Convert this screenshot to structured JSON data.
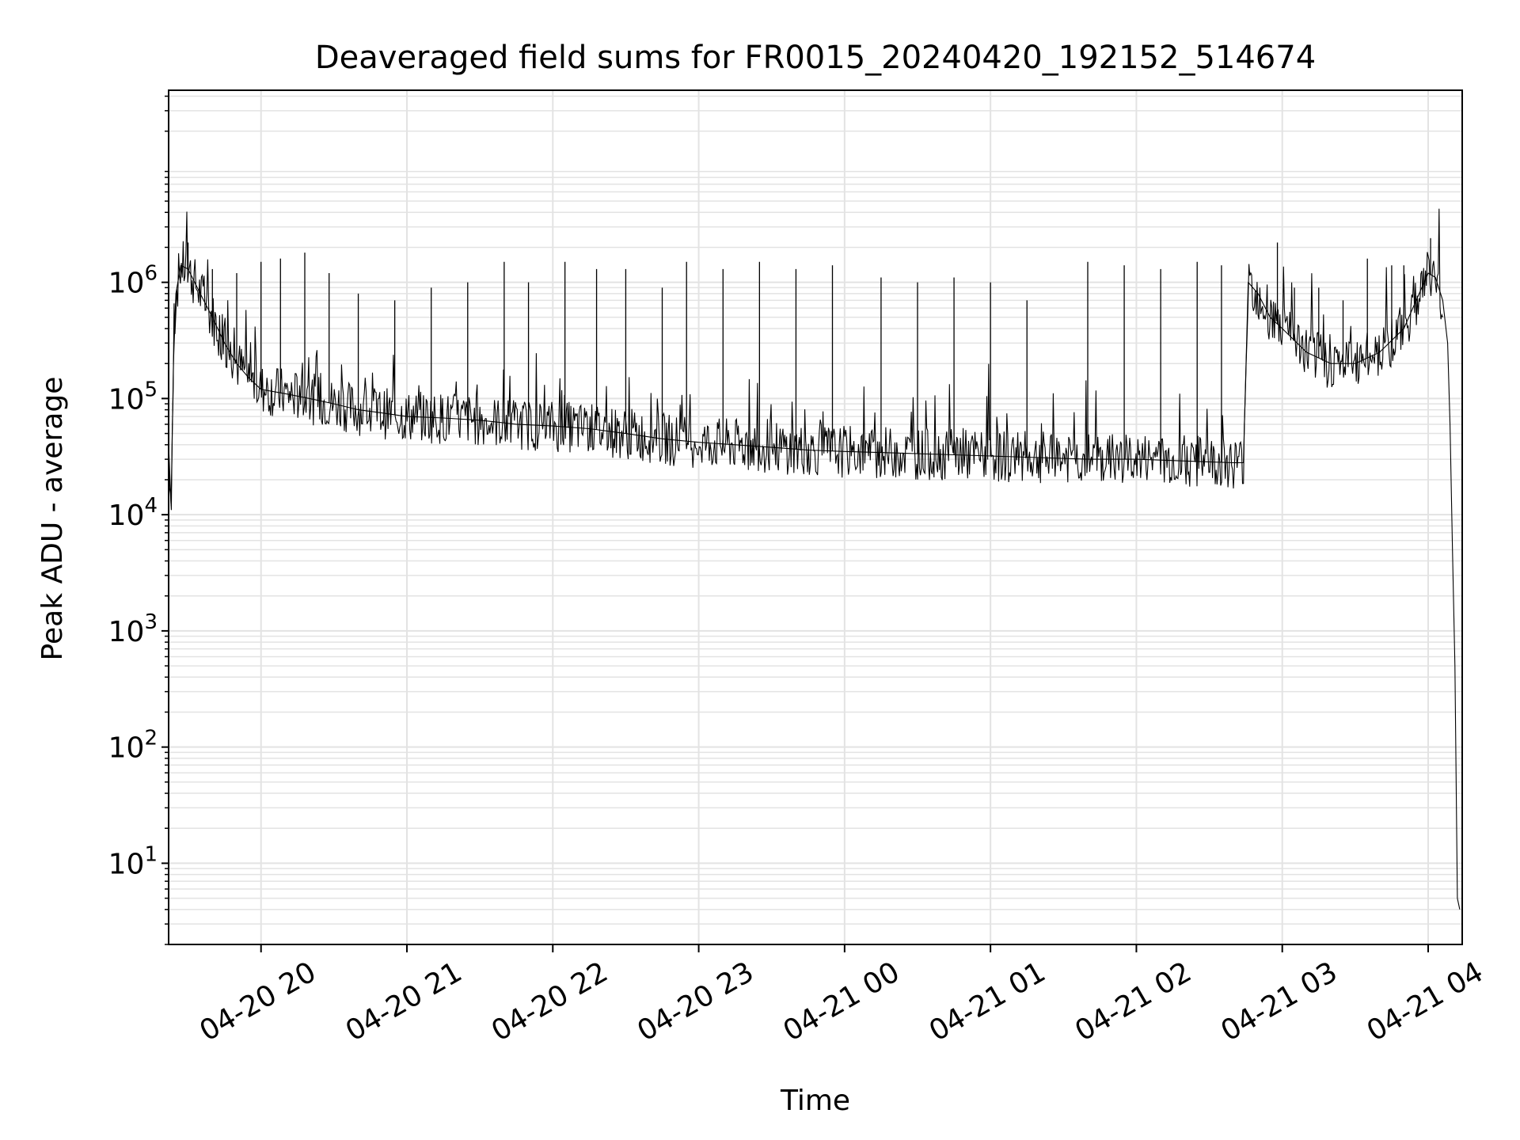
{
  "chart_data": {
    "type": "line",
    "title": "Deaveraged field sums for FR0015_20240420_192152_514674",
    "xlabel": "Time",
    "ylabel": "Peak ADU - average",
    "y_scale": "log",
    "ylim": [
      2,
      45000000
    ],
    "xlim": [
      "2024-04-20 19:22",
      "2024-04-21 04:14"
    ],
    "x_ticks": [
      {
        "value": "2024-04-20 20:00",
        "label": "04-20 20"
      },
      {
        "value": "2024-04-20 21:00",
        "label": "04-20 21"
      },
      {
        "value": "2024-04-20 22:00",
        "label": "04-20 22"
      },
      {
        "value": "2024-04-20 23:00",
        "label": "04-20 23"
      },
      {
        "value": "2024-04-21 00:00",
        "label": "04-21 00"
      },
      {
        "value": "2024-04-21 01:00",
        "label": "04-21 01"
      },
      {
        "value": "2024-04-21 02:00",
        "label": "04-21 02"
      },
      {
        "value": "2024-04-21 03:00",
        "label": "04-21 03"
      },
      {
        "value": "2024-04-21 04:00",
        "label": "04-21 04"
      }
    ],
    "y_ticks": [
      {
        "value": 10,
        "base": "10",
        "exp": "1"
      },
      {
        "value": 100,
        "base": "10",
        "exp": "2"
      },
      {
        "value": 1000,
        "base": "10",
        "exp": "3"
      },
      {
        "value": 10000,
        "base": "10",
        "exp": "4"
      },
      {
        "value": 100000,
        "base": "10",
        "exp": "5"
      },
      {
        "value": 1000000,
        "base": "10",
        "exp": "6"
      }
    ],
    "grid": true,
    "line_color": "#000000",
    "grid_color": "#e3e3e3",
    "series": [
      {
        "x": [
          "2024-04-20 19:22",
          "2024-04-20 19:23",
          "2024-04-20 19:24",
          "2024-04-20 19:25",
          "2024-04-20 19:27",
          "2024-04-20 19:30",
          "2024-04-20 19:35",
          "2024-04-20 19:40",
          "2024-04-20 19:45",
          "2024-04-20 19:50",
          "2024-04-20 19:55",
          "2024-04-20 20:00",
          "2024-04-20 20:10",
          "2024-04-20 20:20",
          "2024-04-20 20:30",
          "2024-04-20 20:40",
          "2024-04-20 20:50",
          "2024-04-20 21:00",
          "2024-04-20 21:15",
          "2024-04-20 21:30",
          "2024-04-20 21:45",
          "2024-04-20 22:00",
          "2024-04-20 22:15",
          "2024-04-20 22:30",
          "2024-04-20 22:45",
          "2024-04-20 23:00",
          "2024-04-20 23:15",
          "2024-04-20 23:30",
          "2024-04-20 23:45",
          "2024-04-21 00:00",
          "2024-04-21 00:20",
          "2024-04-21 00:40",
          "2024-04-21 01:00",
          "2024-04-21 01:20",
          "2024-04-21 01:40",
          "2024-04-21 02:00",
          "2024-04-21 02:20",
          "2024-04-21 02:40",
          "2024-04-21 02:44",
          "2024-04-21 02:46",
          "2024-04-21 02:50",
          "2024-04-21 02:55",
          "2024-04-21 03:00",
          "2024-04-21 03:10",
          "2024-04-21 03:20",
          "2024-04-21 03:30",
          "2024-04-21 03:40",
          "2024-04-21 03:50",
          "2024-04-21 04:00",
          "2024-04-21 04:03",
          "2024-04-21 04:06",
          "2024-04-21 04:08",
          "2024-04-21 04:09",
          "2024-04-21 04:10",
          "2024-04-21 04:11",
          "2024-04-21 04:12",
          "2024-04-21 04:13"
        ],
        "y": [
          40000,
          12000,
          200000,
          800000,
          1400000,
          1300000,
          800000,
          500000,
          300000,
          200000,
          150000,
          120000,
          110000,
          100000,
          90000,
          80000,
          75000,
          70000,
          68000,
          65000,
          60000,
          58000,
          55000,
          50000,
          45000,
          42000,
          40000,
          38000,
          36000,
          35000,
          34000,
          33000,
          32000,
          31000,
          30000,
          30000,
          29000,
          28000,
          28000,
          1000000,
          800000,
          500000,
          400000,
          250000,
          200000,
          200000,
          250000,
          400000,
          1200000,
          1100000,
          700000,
          300000,
          60000,
          5000,
          500,
          5,
          4
        ]
      }
    ],
    "spikes": [
      {
        "x": "2024-04-20 19:30",
        "y": 2200000
      },
      {
        "x": "2024-04-20 19:40",
        "y": 1300000
      },
      {
        "x": "2024-04-20 19:50",
        "y": 1200000
      },
      {
        "x": "2024-04-20 20:00",
        "y": 1500000
      },
      {
        "x": "2024-04-20 20:08",
        "y": 1600000
      },
      {
        "x": "2024-04-20 20:18",
        "y": 1800000
      },
      {
        "x": "2024-04-20 20:28",
        "y": 1200000
      },
      {
        "x": "2024-04-20 20:40",
        "y": 800000
      },
      {
        "x": "2024-04-20 20:55",
        "y": 700000
      },
      {
        "x": "2024-04-20 21:10",
        "y": 900000
      },
      {
        "x": "2024-04-20 21:25",
        "y": 1000000
      },
      {
        "x": "2024-04-20 21:40",
        "y": 1500000
      },
      {
        "x": "2024-04-20 21:50",
        "y": 1000000
      },
      {
        "x": "2024-04-20 22:05",
        "y": 1500000
      },
      {
        "x": "2024-04-20 22:18",
        "y": 1300000
      },
      {
        "x": "2024-04-20 22:30",
        "y": 1300000
      },
      {
        "x": "2024-04-20 22:45",
        "y": 900000
      },
      {
        "x": "2024-04-20 22:55",
        "y": 1500000
      },
      {
        "x": "2024-04-20 23:10",
        "y": 1300000
      },
      {
        "x": "2024-04-20 23:25",
        "y": 1500000
      },
      {
        "x": "2024-04-20 23:40",
        "y": 1300000
      },
      {
        "x": "2024-04-20 23:55",
        "y": 1400000
      },
      {
        "x": "2024-04-21 00:15",
        "y": 1100000
      },
      {
        "x": "2024-04-21 00:30",
        "y": 1000000
      },
      {
        "x": "2024-04-21 00:45",
        "y": 1100000
      },
      {
        "x": "2024-04-21 01:00",
        "y": 1000000
      },
      {
        "x": "2024-04-21 01:15",
        "y": 700000
      },
      {
        "x": "2024-04-21 01:40",
        "y": 1500000
      },
      {
        "x": "2024-04-21 01:55",
        "y": 1400000
      },
      {
        "x": "2024-04-21 02:10",
        "y": 1300000
      },
      {
        "x": "2024-04-21 02:25",
        "y": 1500000
      },
      {
        "x": "2024-04-21 02:35",
        "y": 1400000
      },
      {
        "x": "2024-04-21 02:58",
        "y": 2200000
      },
      {
        "x": "2024-04-21 03:05",
        "y": 900000
      },
      {
        "x": "2024-04-21 03:15",
        "y": 900000
      },
      {
        "x": "2024-04-21 03:25",
        "y": 700000
      },
      {
        "x": "2024-04-21 03:35",
        "y": 1600000
      },
      {
        "x": "2024-04-21 03:45",
        "y": 1400000
      },
      {
        "x": "2024-04-21 03:50",
        "y": 1400000
      },
      {
        "x": "2024-04-21 04:01",
        "y": 2400000
      }
    ]
  }
}
